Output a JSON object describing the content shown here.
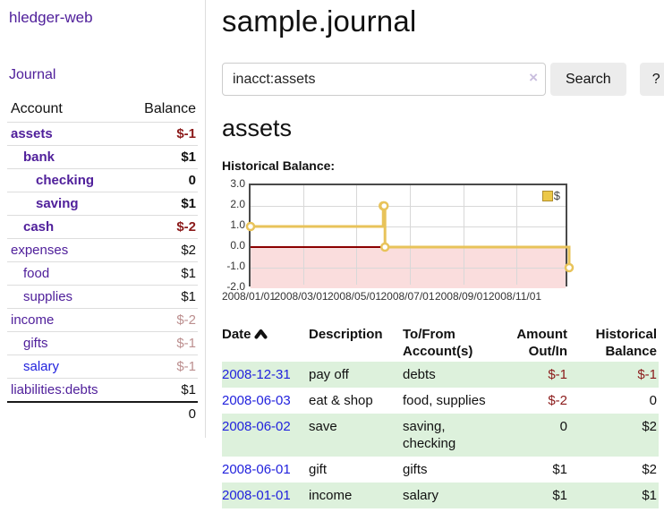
{
  "app": {
    "title": "hledger-web",
    "nav_journal": "Journal"
  },
  "sidebar": {
    "columns": {
      "account": "Account",
      "balance": "Balance"
    },
    "accounts": [
      {
        "name": "assets",
        "indent": 0,
        "balance": "$-1",
        "matched": true,
        "link": "purple",
        "balance_tone": "neg"
      },
      {
        "name": "bank",
        "indent": 1,
        "balance": "$1",
        "matched": true,
        "link": "purple",
        "balance_tone": "none"
      },
      {
        "name": "checking",
        "indent": 2,
        "balance": "0",
        "matched": true,
        "link": "purple",
        "balance_tone": "none"
      },
      {
        "name": "saving",
        "indent": 2,
        "balance": "$1",
        "matched": true,
        "link": "purple",
        "balance_tone": "none"
      },
      {
        "name": "cash",
        "indent": 1,
        "balance": "$-2",
        "matched": true,
        "link": "purple",
        "balance_tone": "neg"
      },
      {
        "name": "expenses",
        "indent": 0,
        "balance": "$2",
        "matched": false,
        "link": "purple",
        "balance_tone": "none"
      },
      {
        "name": "food",
        "indent": 1,
        "balance": "$1",
        "matched": false,
        "link": "purple",
        "balance_tone": "none"
      },
      {
        "name": "supplies",
        "indent": 1,
        "balance": "$1",
        "matched": false,
        "link": "purple",
        "balance_tone": "none"
      },
      {
        "name": "income",
        "indent": 0,
        "balance": "$-2",
        "matched": false,
        "link": "purple",
        "balance_tone": "pale"
      },
      {
        "name": "gifts",
        "indent": 1,
        "balance": "$-1",
        "matched": false,
        "link": "purple",
        "balance_tone": "pale"
      },
      {
        "name": "salary",
        "indent": 1,
        "balance": "$-1",
        "matched": false,
        "link": "blue",
        "balance_tone": "pale"
      },
      {
        "name": "liabilities:debts",
        "indent": 0,
        "balance": "$1",
        "matched": false,
        "link": "purple",
        "balance_tone": "none"
      }
    ],
    "total": "0"
  },
  "header": {
    "title": "sample.journal"
  },
  "search": {
    "query": "inacct:assets",
    "clear_label": "×",
    "button": "Search",
    "help_button": "?"
  },
  "account_page": {
    "heading": "assets",
    "chart_label": "Historical Balance:"
  },
  "chart_data": {
    "type": "line",
    "title": "Historical Balance",
    "step": true,
    "legend": [
      {
        "label": "$",
        "color": "#ecc849"
      }
    ],
    "legend_position": "top-right",
    "x_tick_labels": [
      "2008/01/01",
      "2008/03/01",
      "2008/05/01",
      "2008/07/01",
      "2008/09/01",
      "2008/11/01"
    ],
    "x_range": [
      "2008-01-01",
      "2008-12-31"
    ],
    "y_ticks": [
      3.0,
      2.0,
      1.0,
      0.0,
      -1.0,
      -2.0
    ],
    "ylim": [
      -2,
      3
    ],
    "grid": true,
    "series": [
      {
        "name": "$",
        "points": [
          [
            "2008-01-01",
            1
          ],
          [
            "2008-06-01",
            2
          ],
          [
            "2008-06-02",
            2
          ],
          [
            "2008-06-03",
            0
          ],
          [
            "2008-12-31",
            -1
          ]
        ]
      }
    ]
  },
  "register": {
    "columns": [
      "Date",
      "Description",
      "To/From Account(s)",
      "Amount Out/In",
      "Historical Balance"
    ],
    "sort": {
      "column": "Date",
      "direction": "ascending"
    },
    "rows": [
      {
        "date": "2008-12-31",
        "description": "pay off",
        "accounts": "debts",
        "amount": "$-1",
        "amount_negative": true,
        "balance": "$-1",
        "balance_negative": true
      },
      {
        "date": "2008-06-03",
        "description": "eat & shop",
        "accounts": "food, supplies",
        "amount": "$-2",
        "amount_negative": true,
        "balance": "0",
        "balance_negative": false
      },
      {
        "date": "2008-06-02",
        "description": "save",
        "accounts": "saving, checking",
        "amount": "0",
        "amount_negative": false,
        "balance": "$2",
        "balance_negative": false
      },
      {
        "date": "2008-06-01",
        "description": "gift",
        "accounts": "gifts",
        "amount": "$1",
        "amount_negative": false,
        "balance": "$2",
        "balance_negative": false
      },
      {
        "date": "2008-01-01",
        "description": "income",
        "accounts": "salary",
        "amount": "$1",
        "amount_negative": false,
        "balance": "$1",
        "balance_negative": false
      }
    ]
  },
  "colors": {
    "link_purple": "#50209b",
    "link_blue": "#2222dd",
    "negative_strong": "#8b1a1a",
    "negative_pale": "#bc8f8f",
    "row_green": "#ddf1dc",
    "chart_line_gold": "#e8c35a",
    "chart_negative_bg": "#fadddd",
    "chart_zero_line": "#8b0000"
  }
}
